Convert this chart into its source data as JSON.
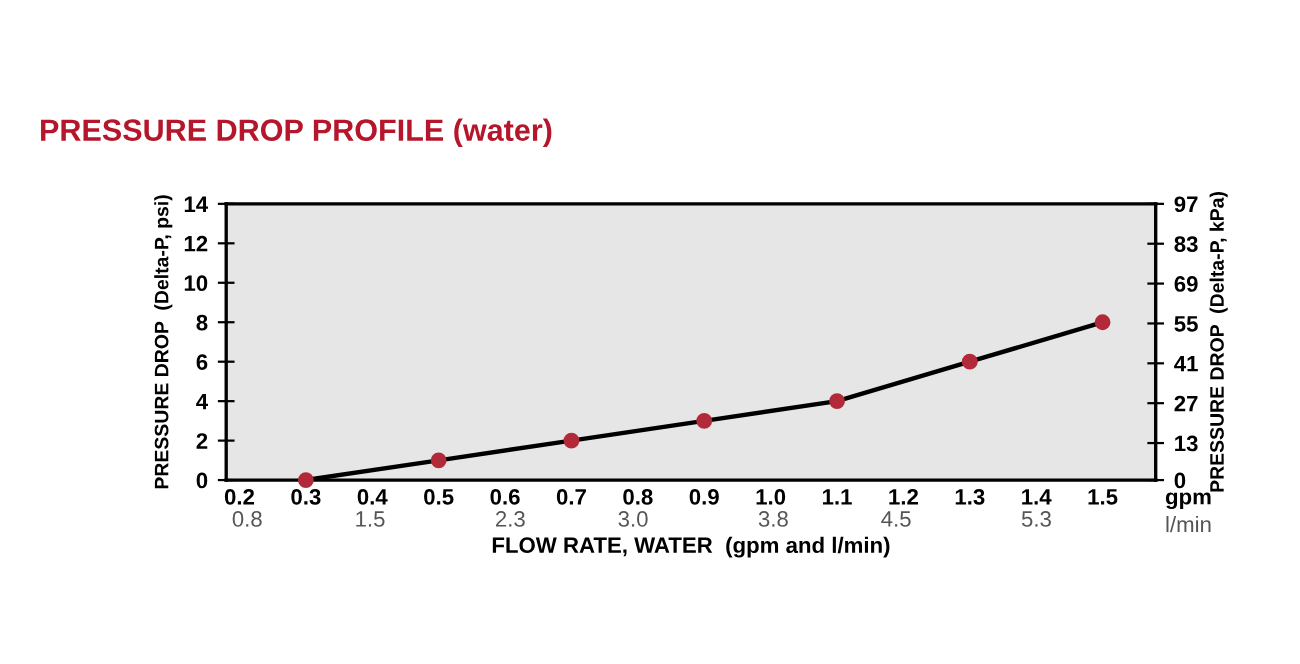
{
  "chart_data": {
    "type": "line",
    "title": "PRESSURE DROP PROFILE (water)",
    "xlabel": "FLOW RATE, WATER  (gpm and l/min)",
    "ylabel": "PRESSURE DROP  (Delta-P, psi)",
    "y2label": "PRESSURE DROP  (Delta-P, kPa)",
    "x": [
      0.3,
      0.5,
      0.7,
      0.9,
      1.1,
      1.3,
      1.5
    ],
    "series": [
      {
        "color": "#000000",
        "marker": "none",
        "values": [
          0,
          1,
          2,
          3,
          4,
          6,
          8
        ]
      },
      {
        "type": "scatter",
        "color": "#b22a3a",
        "marker": "circle",
        "values": [
          0,
          1,
          2,
          3,
          4,
          6,
          8
        ]
      }
    ],
    "line_style": "solid",
    "grid": false,
    "xlim": [
      0.18,
      1.58
    ],
    "xticks": [
      {
        "value": 0.2,
        "label": "0.2"
      },
      {
        "value": 0.3,
        "label": "0.3"
      },
      {
        "value": 0.4,
        "label": "0.4"
      },
      {
        "value": 0.5,
        "label": "0.5"
      },
      {
        "value": 0.6,
        "label": "0.6"
      },
      {
        "value": 0.7,
        "label": "0.7"
      },
      {
        "value": 0.8,
        "label": "0.8"
      },
      {
        "value": 0.9,
        "label": "0.9"
      },
      {
        "value": 1.0,
        "label": "1.0"
      },
      {
        "value": 1.1,
        "label": "1.1"
      },
      {
        "value": 1.2,
        "label": "1.2"
      },
      {
        "value": 1.3,
        "label": "1.3"
      },
      {
        "value": 1.4,
        "label": "1.4"
      },
      {
        "value": 1.5,
        "label": "1.5"
      }
    ],
    "x2lim": [
      0.68,
      5.98
    ],
    "x2ticks": [
      0.8,
      1.5,
      2.3,
      {
        "value": 3.0,
        "label": "3.0"
      },
      3.8,
      4.5,
      5.3
    ],
    "ylim": [
      0,
      14
    ],
    "yticks": [
      0,
      2,
      4,
      6,
      8,
      10,
      12,
      14
    ],
    "y2lim": [
      0,
      97
    ],
    "y2ticks": [
      0,
      13,
      27,
      41,
      55,
      69,
      83,
      97
    ],
    "annotations": [
      "gpm",
      "l/min"
    ]
  }
}
